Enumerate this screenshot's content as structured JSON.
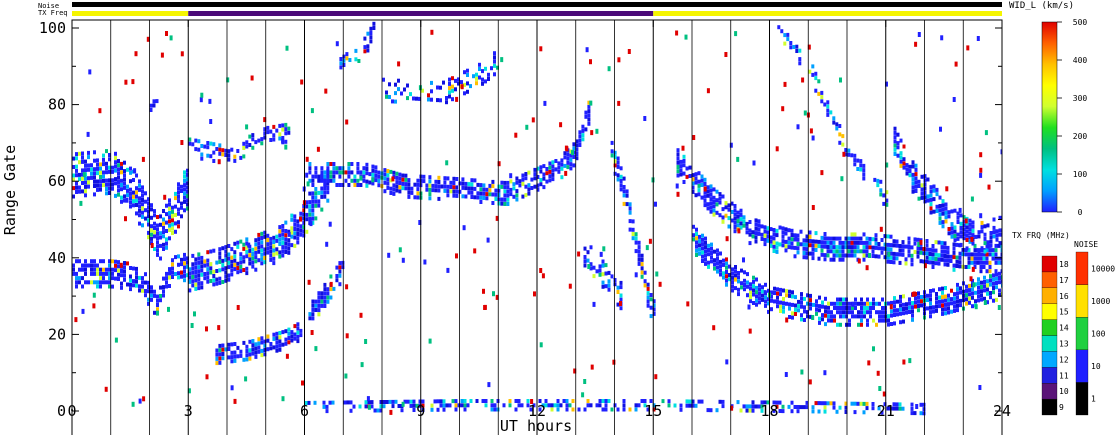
{
  "chart_data": {
    "type": "heatmap",
    "xlabel": "UT hours",
    "ylabel": "Range Gate",
    "xlim": [
      0,
      24
    ],
    "ylim": [
      0,
      100
    ],
    "x_ticks": [
      0,
      3,
      6,
      9,
      12,
      15,
      18,
      21,
      24
    ],
    "x_minor_step_hours": 1,
    "y_ticks": [
      0,
      20,
      40,
      60,
      80,
      100
    ],
    "top_bar_labels": {
      "noise": "Noise",
      "tx_freq": "TX Freq"
    },
    "tx_freq_bar_segments": [
      {
        "start": 0,
        "end": 3,
        "color": "#f5f500"
      },
      {
        "start": 3,
        "end": 15,
        "color": "#4b0a78"
      },
      {
        "start": 15,
        "end": 24,
        "color": "#f5f500"
      }
    ],
    "noise_bar_color": "#000000",
    "value_colorbar": {
      "title": "WID_L (km/s)",
      "ticks": [
        0,
        100,
        200,
        300,
        400,
        500
      ],
      "range": [
        0,
        500
      ],
      "stops": [
        "#2020ff",
        "#00a0ff",
        "#00e0e0",
        "#00c080",
        "#20e020",
        "#d0ff30",
        "#ffff00",
        "#ffc000",
        "#ff6000",
        "#e00000"
      ]
    },
    "freq_colorbar": {
      "title": "TX FRQ (MHz)",
      "ticks": [
        9,
        10,
        11,
        12,
        13,
        14,
        15,
        16,
        17,
        18
      ],
      "colors": [
        "#000000",
        "#5a1478",
        "#2020e0",
        "#00a8ff",
        "#00e0c0",
        "#20d020",
        "#ffff00",
        "#ffb000",
        "#ff6000",
        "#e00000"
      ]
    },
    "noise_colorbar": {
      "title": "NOISE",
      "ticks": [
        "1",
        "10",
        "100",
        "1000",
        "10000"
      ],
      "colors": [
        "#000000",
        "#2020ff",
        "#20d040",
        "#ffe000",
        "#ff3000"
      ]
    },
    "echo_traces": [
      {
        "name": "upper-band-early",
        "points": [
          [
            0,
            62
          ],
          [
            1,
            63
          ],
          [
            1.6,
            57
          ],
          [
            2.2,
            45
          ],
          [
            2.7,
            54
          ],
          [
            3,
            60
          ]
        ],
        "spread": 6,
        "density": 0.82
      },
      {
        "name": "lower-band-early",
        "points": [
          [
            0,
            36
          ],
          [
            1,
            36
          ],
          [
            1.7,
            35
          ],
          [
            2.1,
            29
          ],
          [
            2.6,
            37
          ],
          [
            3,
            38
          ]
        ],
        "spread": 3.5,
        "density": 0.8
      },
      {
        "name": "blob-3-6",
        "points": [
          [
            3,
            36
          ],
          [
            3.8,
            38
          ],
          [
            4.6,
            41
          ],
          [
            5.4,
            44
          ],
          [
            6,
            51
          ],
          [
            6.6,
            60
          ]
        ],
        "spread": 4.5,
        "density": 0.9
      },
      {
        "name": "band-3-5-high",
        "points": [
          [
            3,
            69
          ],
          [
            4,
            67
          ],
          [
            5,
            72
          ],
          [
            5.6,
            73
          ]
        ],
        "spread": 2.5,
        "density": 0.55
      },
      {
        "name": "low-patch-4",
        "points": [
          [
            3.7,
            15
          ],
          [
            4.5,
            16
          ],
          [
            5.5,
            19
          ],
          [
            6,
            22
          ]
        ],
        "spread": 2.5,
        "density": 0.8
      },
      {
        "name": "main-band",
        "points": [
          [
            6.1,
            62
          ],
          [
            7.5,
            62
          ],
          [
            8.5,
            59
          ],
          [
            10,
            58
          ],
          [
            11.2,
            57
          ],
          [
            11.8,
            60
          ],
          [
            12.5,
            63
          ],
          [
            13,
            68
          ],
          [
            13.3,
            78
          ]
        ],
        "spread": 3,
        "density": 0.8
      },
      {
        "name": "rise-6",
        "points": [
          [
            6.1,
            25
          ],
          [
            6.6,
            32
          ],
          [
            7,
            38
          ]
        ],
        "spread": 3,
        "density": 0.8
      },
      {
        "name": "high-arc-9",
        "points": [
          [
            8,
            84
          ],
          [
            9.5,
            83
          ],
          [
            10.5,
            88
          ],
          [
            11,
            92
          ]
        ],
        "spread": 3,
        "density": 0.45
      },
      {
        "name": "top-7",
        "points": [
          [
            6.9,
            90
          ],
          [
            7.5,
            95
          ],
          [
            7.8,
            100
          ]
        ],
        "spread": 2.5,
        "density": 0.45
      },
      {
        "name": "desc-13",
        "points": [
          [
            13.9,
            68
          ],
          [
            14.2,
            58
          ],
          [
            14.5,
            45
          ],
          [
            14.8,
            32
          ],
          [
            15,
            25
          ]
        ],
        "spread": 3.5,
        "density": 0.8
      },
      {
        "name": "patch-13",
        "points": [
          [
            13.2,
            42
          ],
          [
            13.7,
            36
          ],
          [
            14.2,
            30
          ]
        ],
        "spread": 4,
        "density": 0.6
      },
      {
        "name": "arc-15-24",
        "points": [
          [
            15.6,
            65
          ],
          [
            16.5,
            55
          ],
          [
            17.5,
            47
          ],
          [
            18.5,
            44
          ],
          [
            19.5,
            43
          ],
          [
            20.5,
            43
          ],
          [
            21.5,
            42
          ],
          [
            23,
            40
          ],
          [
            24,
            40
          ]
        ],
        "spread": 3.5,
        "density": 0.8
      },
      {
        "name": "lower-15-24",
        "points": [
          [
            16,
            45
          ],
          [
            17,
            35
          ],
          [
            18,
            29
          ],
          [
            19.5,
            26
          ],
          [
            21,
            26
          ],
          [
            22.5,
            29
          ],
          [
            24,
            33
          ]
        ],
        "spread": 3.5,
        "density": 0.85
      },
      {
        "name": "arc-19",
        "points": [
          [
            19,
            90
          ],
          [
            19.4,
            80
          ],
          [
            19.9,
            70
          ],
          [
            20.4,
            62
          ]
        ],
        "spread": 2.5,
        "density": 0.6
      },
      {
        "name": "arc-18",
        "points": [
          [
            18.2,
            100
          ],
          [
            18.8,
            92
          ]
        ],
        "spread": 2,
        "density": 0.5
      },
      {
        "name": "arc-21",
        "points": [
          [
            21.2,
            70
          ],
          [
            21.6,
            62
          ],
          [
            22.2,
            55
          ],
          [
            22.8,
            48
          ],
          [
            23.3,
            45
          ],
          [
            24,
            47
          ]
        ],
        "spread": 4,
        "density": 0.7
      },
      {
        "name": "patch-20",
        "points": [
          [
            20.6,
            62
          ],
          [
            21,
            55
          ]
        ],
        "spread": 2.5,
        "density": 0.5
      },
      {
        "name": "ground-scatter",
        "points": [
          [
            6,
            1.5
          ],
          [
            10,
            2
          ],
          [
            15,
            2
          ],
          [
            19,
            1.5
          ],
          [
            22,
            1
          ]
        ],
        "spread": 1.6,
        "density": 0.5
      },
      {
        "name": "arc-1-5-80",
        "points": [
          [
            2,
            79
          ],
          [
            2.2,
            82
          ]
        ],
        "spread": 1.5,
        "density": 0.7
      }
    ]
  }
}
